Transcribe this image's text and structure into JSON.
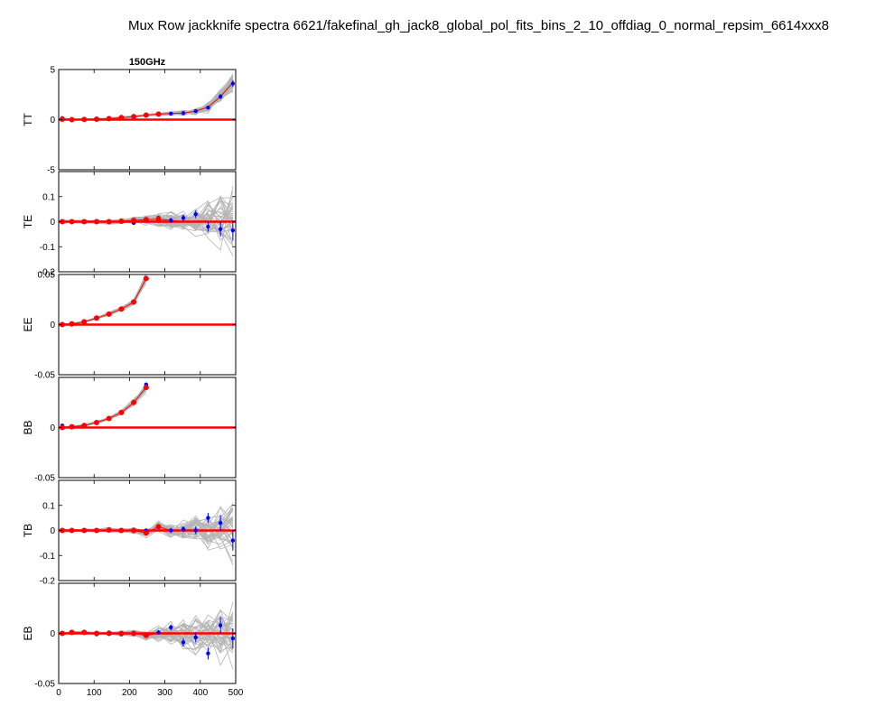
{
  "figure": {
    "title": "Mux Row jackknife spectra 6621/fakefinal_gh_jack8_global_pol_fits_bins_2_10_offdiag_0_normal_repsim_6614xxx8",
    "column_title": "150GHz"
  },
  "colors": {
    "sims": "#b4b4b4",
    "real": "#0000ff",
    "sim_mean": "#ff0000",
    "zero_line": "#ff0000"
  },
  "chart_data": [
    {
      "type": "line",
      "panel": "TT",
      "ylabel": "TT",
      "xlim": [
        0,
        500
      ],
      "ylim": [
        -5,
        5
      ],
      "yticks": [
        -5,
        0,
        5
      ],
      "ytick_labels": [
        "-5",
        "0",
        "5"
      ],
      "x": [
        10,
        37,
        72,
        107,
        142,
        177,
        212,
        247,
        282,
        317,
        352,
        387,
        422,
        457,
        492
      ],
      "real_y": [
        0.15,
        -0.05,
        0.0,
        0.05,
        0.05,
        0.2,
        0.3,
        0.45,
        0.55,
        0.6,
        0.65,
        0.85,
        1.2,
        2.3,
        3.6
      ],
      "real_err": [
        0.15,
        0.1,
        0.08,
        0.08,
        0.08,
        0.08,
        0.08,
        0.08,
        0.08,
        0.08,
        0.1,
        0.12,
        0.15,
        0.25,
        0.35
      ],
      "sim_mean_y": [
        0.05,
        0.0,
        0.02,
        0.05,
        0.1,
        0.2,
        0.3,
        0.45,
        0.55,
        0.6,
        0.65,
        0.85,
        1.25,
        2.3,
        3.7
      ],
      "sim_spread": [
        0.08,
        0.05,
        0.05,
        0.05,
        0.05,
        0.05,
        0.06,
        0.06,
        0.08,
        0.1,
        0.15,
        0.2,
        0.3,
        0.4,
        0.6
      ],
      "mean_markers_to": 282
    },
    {
      "type": "line",
      "panel": "TE",
      "ylabel": "TE",
      "xlim": [
        0,
        500
      ],
      "ylim": [
        -0.2,
        0.2
      ],
      "yticks": [
        -0.2,
        -0.1,
        0,
        0.1
      ],
      "ytick_labels": [
        "-0.2",
        "-0.1",
        "0",
        "0.1"
      ],
      "x": [
        10,
        37,
        72,
        107,
        142,
        177,
        212,
        247,
        282,
        317,
        352,
        387,
        422,
        457,
        492
      ],
      "real_y": [
        -0.002,
        0.0,
        0.0,
        0.002,
        -0.002,
        0.003,
        -0.005,
        0.005,
        0.015,
        0.005,
        0.015,
        0.03,
        -0.02,
        -0.03,
        -0.035
      ],
      "real_err": [
        0.004,
        0.004,
        0.004,
        0.004,
        0.004,
        0.005,
        0.005,
        0.006,
        0.008,
        0.01,
        0.012,
        0.015,
        0.02,
        0.03,
        0.04
      ],
      "sim_mean_y": [
        0.0,
        0.0,
        0.0,
        0.0,
        0.0,
        0.002,
        0.005,
        0.008,
        0.01,
        0.005,
        0.0,
        0.0,
        0.0,
        0.0,
        0.0
      ],
      "sim_spread": [
        0.004,
        0.004,
        0.004,
        0.004,
        0.005,
        0.006,
        0.008,
        0.012,
        0.015,
        0.02,
        0.025,
        0.035,
        0.05,
        0.06,
        0.08
      ],
      "mean_markers_to": 282
    },
    {
      "type": "line",
      "panel": "EE",
      "ylabel": "EE",
      "xlim": [
        0,
        500
      ],
      "ylim": [
        -0.05,
        0.05
      ],
      "yticks": [
        -0.05,
        0,
        0.05
      ],
      "ytick_labels": [
        "-0.05",
        "0",
        "0.05"
      ],
      "x": [
        10,
        37,
        72,
        107,
        142,
        177,
        212,
        247
      ],
      "real_y": [
        0.0,
        0.0,
        0.003,
        0.007,
        0.01,
        0.015,
        0.022,
        0.046
      ],
      "real_err": [
        0.0006,
        0.0006,
        0.0008,
        0.0008,
        0.001,
        0.001,
        0.0012,
        0.0015
      ],
      "sim_mean_y": [
        0.0,
        0.0008,
        0.0028,
        0.0065,
        0.0105,
        0.0155,
        0.0225,
        0.046
      ],
      "sim_spread": [
        0.0005,
        0.0005,
        0.0006,
        0.0008,
        0.001,
        0.0012,
        0.002,
        0.003
      ],
      "mean_markers_to": 247
    },
    {
      "type": "line",
      "panel": "BB",
      "ylabel": "BB",
      "xlim": [
        0,
        500
      ],
      "ylim": [
        -0.05,
        0.05
      ],
      "yticks": [
        -0.05,
        0
      ],
      "ytick_labels": [
        "-0.05",
        "0"
      ],
      "x": [
        10,
        37,
        72,
        107,
        142,
        177,
        212,
        247
      ],
      "real_y": [
        0.002,
        0.001,
        0.002,
        0.005,
        0.009,
        0.015,
        0.025,
        0.043
      ],
      "real_err": [
        0.0006,
        0.0006,
        0.0008,
        0.0008,
        0.001,
        0.001,
        0.0012,
        0.0015
      ],
      "sim_mean_y": [
        0.0,
        0.0008,
        0.002,
        0.005,
        0.009,
        0.015,
        0.025,
        0.04
      ],
      "sim_spread": [
        0.0005,
        0.0005,
        0.0006,
        0.0008,
        0.001,
        0.0012,
        0.002,
        0.003
      ],
      "mean_markers_to": 247
    },
    {
      "type": "line",
      "panel": "TB",
      "ylabel": "TB",
      "xlim": [
        0,
        500
      ],
      "ylim": [
        -0.2,
        0.2
      ],
      "yticks": [
        -0.2,
        -0.1,
        0,
        0.1
      ],
      "ytick_labels": [
        "-0.2",
        "-0.1",
        "0",
        "0.1"
      ],
      "x": [
        10,
        37,
        72,
        107,
        142,
        177,
        212,
        247,
        282,
        317,
        352,
        387,
        422,
        457,
        492
      ],
      "real_y": [
        0.0,
        0.0,
        0.0,
        0.0,
        0.0,
        0.0,
        0.0,
        0.0,
        0.015,
        0.0,
        0.005,
        0.0,
        0.05,
        0.03,
        -0.04
      ],
      "real_err": [
        0.004,
        0.004,
        0.004,
        0.004,
        0.005,
        0.005,
        0.006,
        0.007,
        0.008,
        0.01,
        0.012,
        0.015,
        0.02,
        0.03,
        0.04
      ],
      "sim_mean_y": [
        0.0,
        0.0,
        0.0,
        0.0,
        0.002,
        0.0,
        0.0,
        -0.01,
        0.015,
        0.0,
        0.0,
        0.0,
        0.0,
        0.0,
        0.0
      ],
      "sim_spread": [
        0.004,
        0.004,
        0.004,
        0.004,
        0.005,
        0.006,
        0.008,
        0.01,
        0.012,
        0.015,
        0.02,
        0.03,
        0.04,
        0.05,
        0.07
      ],
      "mean_markers_to": 282
    },
    {
      "type": "line",
      "panel": "EB",
      "ylabel": "EB",
      "xlim": [
        0,
        500
      ],
      "ylim": [
        -0.05,
        0.05
      ],
      "yticks": [
        -0.05,
        0
      ],
      "ytick_labels": [
        "-0.05",
        "0"
      ],
      "x": [
        10,
        37,
        72,
        107,
        142,
        177,
        212,
        247,
        282,
        317,
        352,
        387,
        422,
        457,
        492
      ],
      "real_y": [
        0.0,
        0.001,
        0.001,
        -0.001,
        0.001,
        -0.001,
        0.0,
        -0.002,
        0.001,
        0.006,
        -0.009,
        -0.004,
        -0.02,
        0.008,
        -0.005
      ],
      "real_err": [
        0.0006,
        0.0006,
        0.0008,
        0.0008,
        0.001,
        0.001,
        0.0012,
        0.0015,
        0.002,
        0.003,
        0.004,
        0.005,
        0.006,
        0.008,
        0.01
      ],
      "sim_mean_y": [
        0.0,
        0.001,
        0.001,
        0.0,
        0.0,
        0.0,
        0.0,
        -0.002,
        0.0,
        0.0,
        0.0,
        0.0,
        0.0,
        0.0,
        0.0
      ],
      "sim_spread": [
        0.0006,
        0.0006,
        0.0008,
        0.001,
        0.0012,
        0.0015,
        0.002,
        0.003,
        0.005,
        0.007,
        0.009,
        0.011,
        0.013,
        0.015,
        0.018
      ],
      "mean_markers_to": 247
    }
  ],
  "xaxis": {
    "ticks": [
      0,
      100,
      200,
      300,
      400,
      500
    ],
    "tick_labels": [
      "0",
      "100",
      "200",
      "300",
      "400",
      "500"
    ]
  }
}
